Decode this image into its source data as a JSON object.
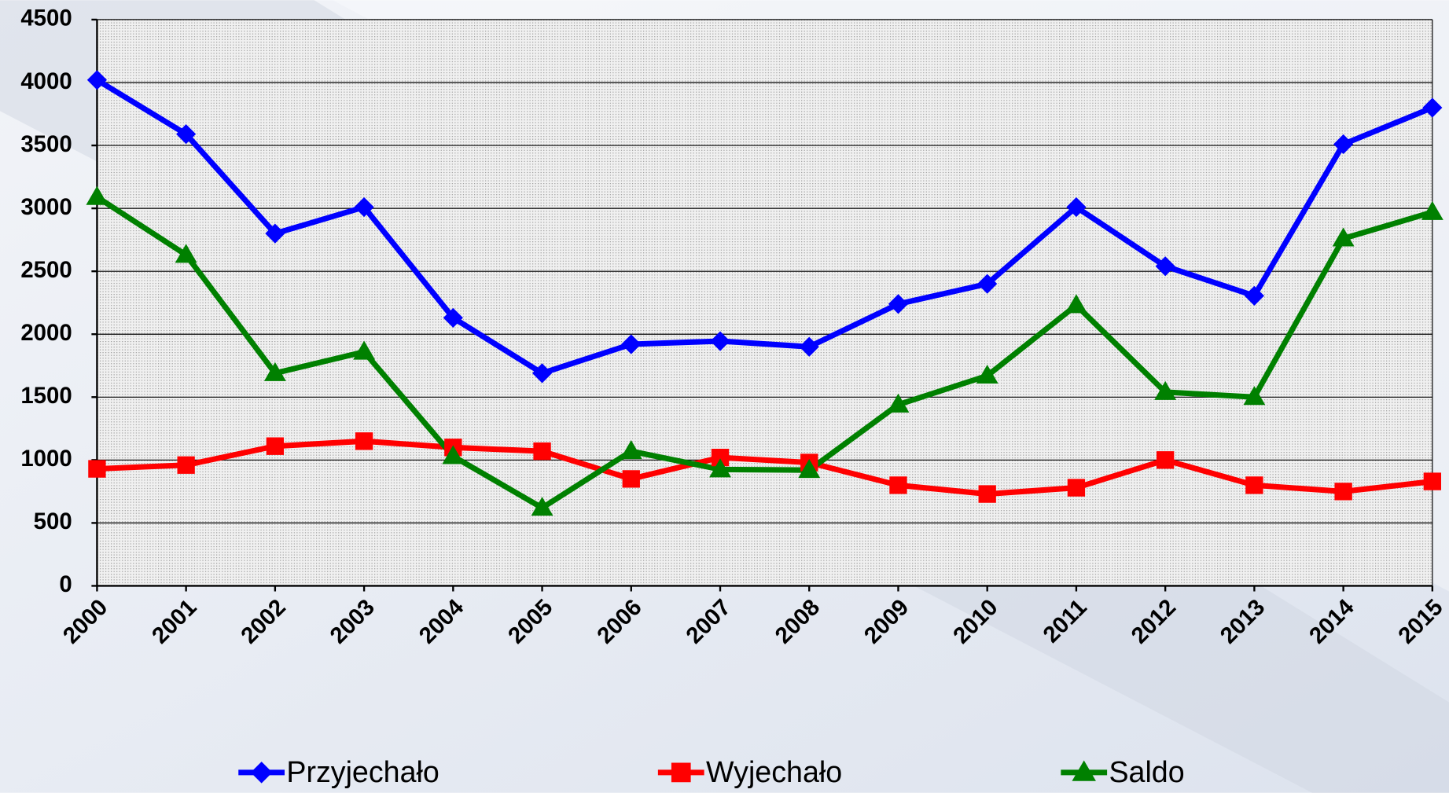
{
  "chart_data": {
    "type": "line",
    "categories": [
      "2000",
      "2001",
      "2002",
      "2003",
      "2004",
      "2005",
      "2006",
      "2007",
      "2008",
      "2009",
      "2010",
      "2011",
      "2012",
      "2013",
      "2014",
      "2015"
    ],
    "series": [
      {
        "name": "Przyjechało",
        "color": "#0000ff",
        "marker": "diamond",
        "values": [
          4020,
          3590,
          2800,
          3010,
          2130,
          1690,
          1920,
          1945,
          1900,
          2240,
          2400,
          3010,
          2540,
          2305,
          3510,
          3800
        ]
      },
      {
        "name": "Wyjechało",
        "color": "#ff0000",
        "marker": "square",
        "values": [
          930,
          960,
          1110,
          1150,
          1100,
          1070,
          850,
          1020,
          980,
          800,
          730,
          780,
          1000,
          800,
          750,
          830
        ]
      },
      {
        "name": "Saldo",
        "color": "#008000",
        "marker": "triangle",
        "values": [
          3090,
          2630,
          1690,
          1860,
          1030,
          620,
          1070,
          925,
          920,
          1440,
          1670,
          2230,
          1540,
          1500,
          2760,
          2970
        ]
      }
    ],
    "ylim": [
      0,
      4500
    ],
    "yticks": [
      0,
      500,
      1000,
      1500,
      2000,
      2500,
      3000,
      3500,
      4000,
      4500
    ],
    "grid": true,
    "legend": "bottom"
  }
}
